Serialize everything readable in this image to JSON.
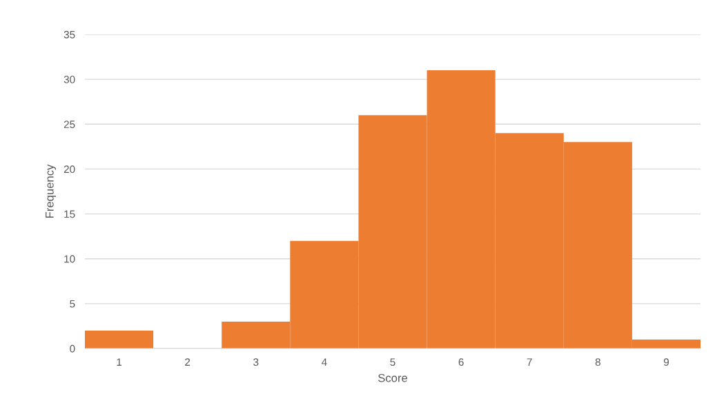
{
  "chart_data": {
    "type": "histogram",
    "xlabel": "Score",
    "ylabel": "Frequency",
    "bins": [
      0.5,
      1.5,
      2.5,
      3.5,
      4.5,
      5.5,
      6.5,
      7.5,
      8.5,
      9.5
    ],
    "values": [
      2,
      0,
      3,
      12,
      26,
      31,
      24,
      23,
      1
    ],
    "color": "#ed7d31",
    "xlim": [
      0.5,
      9.5
    ],
    "xticks": [
      1,
      2,
      3,
      4,
      5,
      6,
      7,
      8,
      9
    ],
    "ylim": [
      0,
      35
    ],
    "yticks": [
      0,
      5,
      10,
      15,
      20,
      25,
      30,
      35
    ],
    "grid": "y"
  }
}
